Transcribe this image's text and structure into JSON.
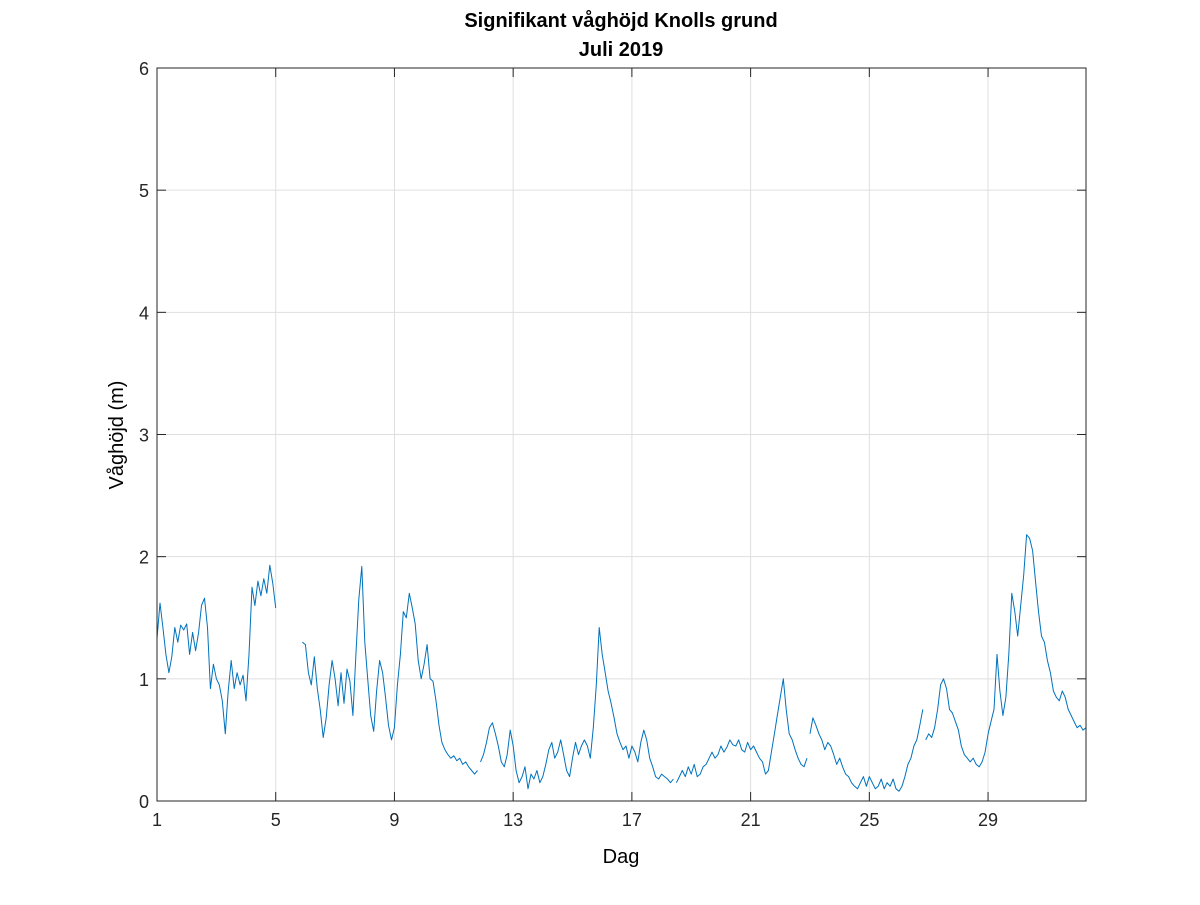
{
  "chart_data": {
    "type": "line",
    "title": "Signifikant våghöjd Knolls grund",
    "subtitle": "Juli 2019",
    "xlabel": "Dag",
    "ylabel": "Våghöjd (m)",
    "xlim": [
      1,
      32.3
    ],
    "ylim": [
      0,
      6
    ],
    "xticks": [
      1,
      5,
      9,
      13,
      17,
      21,
      25,
      29
    ],
    "yticks": [
      0,
      1,
      2,
      3,
      4,
      5,
      6
    ],
    "grid": true,
    "legend": "none",
    "colors": {
      "series": "#0072bd",
      "frame": "#262626",
      "grid": "#dfdfdf"
    },
    "series": [
      {
        "segments": [
          {
            "x": [
              1.0,
              1.1,
              1.2,
              1.3,
              1.4,
              1.5,
              1.6,
              1.7,
              1.8,
              1.9,
              2.0,
              2.1,
              2.2,
              2.3,
              2.4,
              2.5,
              2.6,
              2.7,
              2.8,
              2.9,
              3.0,
              3.1,
              3.2,
              3.3,
              3.4,
              3.5,
              3.6,
              3.7,
              3.8,
              3.9,
              4.0,
              4.1,
              4.2,
              4.3,
              4.4,
              4.5,
              4.6,
              4.7,
              4.8,
              4.9,
              5.0,
              5.1,
              5.2,
              5.3,
              5.4,
              5.5,
              5.6,
              5.7
            ],
            "y": [
              1.33,
              1.62,
              1.42,
              1.2,
              1.05,
              1.18,
              1.42,
              1.3,
              1.44,
              1.4,
              1.45,
              1.2,
              1.38,
              1.23,
              1.38,
              1.6,
              1.66,
              1.42,
              0.92,
              1.12,
              1.0,
              0.95,
              0.82,
              0.55,
              0.9,
              1.15,
              0.92,
              1.05,
              0.95,
              1.03,
              0.82,
              1.2,
              1.75,
              1.6,
              1.8,
              1.68,
              1.82,
              1.7,
              1.93,
              1.78,
              1.58,
              null,
              null,
              null,
              null,
              null,
              null,
              null
            ]
          },
          {
            "x": [
              5.9,
              6.0,
              6.1,
              6.2,
              6.3,
              6.4,
              6.5,
              6.6,
              6.7,
              6.8,
              6.9,
              7.0,
              7.1,
              7.2,
              7.3,
              7.4,
              7.5,
              7.6,
              7.7,
              7.8,
              7.9,
              8.0,
              8.1,
              8.2,
              8.3,
              8.4,
              8.5,
              8.6,
              8.7,
              8.8,
              8.9,
              9.0,
              9.1,
              9.2,
              9.3,
              9.4,
              9.5,
              9.6,
              9.7,
              9.8,
              9.9,
              10.0,
              10.1,
              10.2,
              10.3,
              10.4,
              10.5,
              10.6,
              10.7,
              10.8,
              10.9,
              11.0,
              11.1,
              11.2,
              11.3,
              11.4,
              11.5,
              11.6,
              11.7,
              11.8
            ],
            "y": [
              1.3,
              1.28,
              1.05,
              0.95,
              1.18,
              0.92,
              0.75,
              0.52,
              0.68,
              0.95,
              1.15,
              1.0,
              0.78,
              1.05,
              0.8,
              1.08,
              0.98,
              0.7,
              1.2,
              1.65,
              1.92,
              1.3,
              1.0,
              0.7,
              0.57,
              0.9,
              1.15,
              1.05,
              0.85,
              0.62,
              0.5,
              0.6,
              0.95,
              1.2,
              1.55,
              1.5,
              1.7,
              1.58,
              1.45,
              1.15,
              1.0,
              1.12,
              1.28,
              1.0,
              0.98,
              0.82,
              0.62,
              0.48,
              0.42,
              0.38,
              0.35,
              0.37,
              0.33,
              0.35,
              0.3,
              0.32,
              0.28,
              0.25,
              0.22,
              0.25
            ]
          },
          {
            "x": [
              11.9,
              12.0,
              12.1,
              12.2,
              12.3,
              12.4,
              12.5,
              12.6,
              12.7,
              12.8,
              12.9,
              13.0,
              13.1,
              13.2,
              13.3,
              13.4,
              13.5,
              13.6,
              13.7,
              13.8,
              13.9,
              14.0,
              14.1,
              14.2,
              14.3,
              14.4,
              14.5,
              14.6,
              14.7,
              14.8,
              14.9,
              15.0,
              15.1,
              15.2,
              15.3,
              15.4,
              15.5,
              15.6,
              15.7,
              15.8,
              15.9,
              16.0,
              16.1,
              16.2,
              16.3,
              16.4,
              16.5,
              16.6,
              16.7,
              16.8,
              16.9,
              17.0,
              17.1,
              17.2,
              17.3,
              17.4,
              17.5,
              17.6,
              17.7,
              17.8,
              17.9,
              18.0,
              18.1,
              18.2,
              18.3,
              18.4
            ],
            "y": [
              0.32,
              0.38,
              0.48,
              0.6,
              0.64,
              0.55,
              0.45,
              0.32,
              0.28,
              0.38,
              0.58,
              0.45,
              0.25,
              0.15,
              0.2,
              0.28,
              0.1,
              0.22,
              0.18,
              0.25,
              0.15,
              0.2,
              0.3,
              0.42,
              0.48,
              0.35,
              0.4,
              0.5,
              0.38,
              0.25,
              0.2,
              0.35,
              0.48,
              0.38,
              0.45,
              0.5,
              0.45,
              0.35,
              0.6,
              0.95,
              1.42,
              1.2,
              1.05,
              0.9,
              0.8,
              0.68,
              0.55,
              0.48,
              0.42,
              0.45,
              0.35,
              0.45,
              0.4,
              0.32,
              0.48,
              0.58,
              0.5,
              0.35,
              0.28,
              0.2,
              0.18,
              0.22,
              0.2,
              0.18,
              0.15,
              0.18
            ]
          },
          {
            "x": [
              18.5,
              18.6,
              18.7,
              18.8,
              18.9,
              19.0,
              19.1,
              19.2,
              19.3,
              19.4,
              19.5,
              19.6,
              19.7,
              19.8,
              19.9,
              20.0,
              20.1,
              20.2,
              20.3,
              20.4,
              20.5,
              20.6,
              20.7,
              20.8,
              20.9,
              21.0,
              21.1,
              21.2,
              21.3,
              21.4,
              21.5,
              21.6,
              21.7,
              21.8,
              21.9,
              22.0,
              22.1,
              22.2,
              22.3,
              22.4,
              22.5,
              22.6,
              22.7,
              22.8,
              22.9
            ],
            "y": [
              0.15,
              0.2,
              0.25,
              0.2,
              0.28,
              0.22,
              0.3,
              0.2,
              0.22,
              0.28,
              0.3,
              0.35,
              0.4,
              0.35,
              0.38,
              0.45,
              0.4,
              0.44,
              0.5,
              0.46,
              0.45,
              0.5,
              0.42,
              0.4,
              0.48,
              0.42,
              0.45,
              0.4,
              0.35,
              0.32,
              0.22,
              0.25,
              0.4,
              0.55,
              0.7,
              0.85,
              1.0,
              0.75,
              0.55,
              0.5,
              0.42,
              0.35,
              0.3,
              0.28,
              0.35
            ]
          },
          {
            "x": [
              23.0,
              23.1,
              23.2,
              23.3,
              23.4,
              23.5,
              23.6,
              23.7,
              23.8,
              23.9,
              24.0,
              24.1,
              24.2,
              24.3,
              24.4,
              24.5,
              24.6,
              24.7,
              24.8,
              24.9,
              25.0,
              25.1,
              25.2,
              25.3,
              25.4,
              25.5,
              25.6,
              25.7,
              25.8,
              25.9,
              26.0,
              26.1,
              26.2,
              26.3,
              26.4,
              26.5,
              26.6,
              26.7,
              26.8
            ],
            "y": [
              0.55,
              0.68,
              0.62,
              0.55,
              0.5,
              0.42,
              0.48,
              0.45,
              0.38,
              0.3,
              0.35,
              0.28,
              0.22,
              0.2,
              0.15,
              0.12,
              0.1,
              0.15,
              0.2,
              0.12,
              0.2,
              0.15,
              0.1,
              0.12,
              0.18,
              0.1,
              0.15,
              0.12,
              0.18,
              0.1,
              0.08,
              0.12,
              0.2,
              0.3,
              0.35,
              0.45,
              0.5,
              0.62,
              0.75
            ]
          },
          {
            "x": [
              26.9,
              27.0,
              27.1,
              27.2,
              27.3,
              27.4,
              27.5,
              27.6,
              27.7,
              27.8,
              27.9,
              28.0,
              28.1,
              28.2,
              28.3,
              28.4,
              28.5,
              28.6,
              28.7,
              28.8,
              28.9,
              29.0,
              29.1,
              29.2,
              29.3,
              29.4,
              29.5,
              29.6,
              29.7,
              29.8,
              29.9,
              30.0,
              30.1,
              30.2,
              30.3,
              30.4,
              30.5,
              30.6,
              30.7,
              30.8,
              30.9,
              31.0,
              31.1,
              31.2,
              31.3,
              31.4,
              31.5,
              31.6,
              31.7,
              31.8,
              31.9,
              32.0,
              32.1,
              32.2,
              32.3
            ],
            "y": [
              0.5,
              0.55,
              0.52,
              0.6,
              0.75,
              0.95,
              1.0,
              0.92,
              0.75,
              0.72,
              0.65,
              0.58,
              0.45,
              0.38,
              0.35,
              0.32,
              0.35,
              0.3,
              0.28,
              0.32,
              0.4,
              0.55,
              0.65,
              0.75,
              1.2,
              0.9,
              0.7,
              0.85,
              1.2,
              1.7,
              1.55,
              1.35,
              1.6,
              1.85,
              2.18,
              2.15,
              2.05,
              1.8,
              1.55,
              1.35,
              1.3,
              1.15,
              1.05,
              0.9,
              0.85,
              0.82,
              0.9,
              0.85,
              0.75,
              0.7,
              0.65,
              0.6,
              0.62,
              0.58,
              0.6
            ]
          }
        ]
      }
    ]
  }
}
